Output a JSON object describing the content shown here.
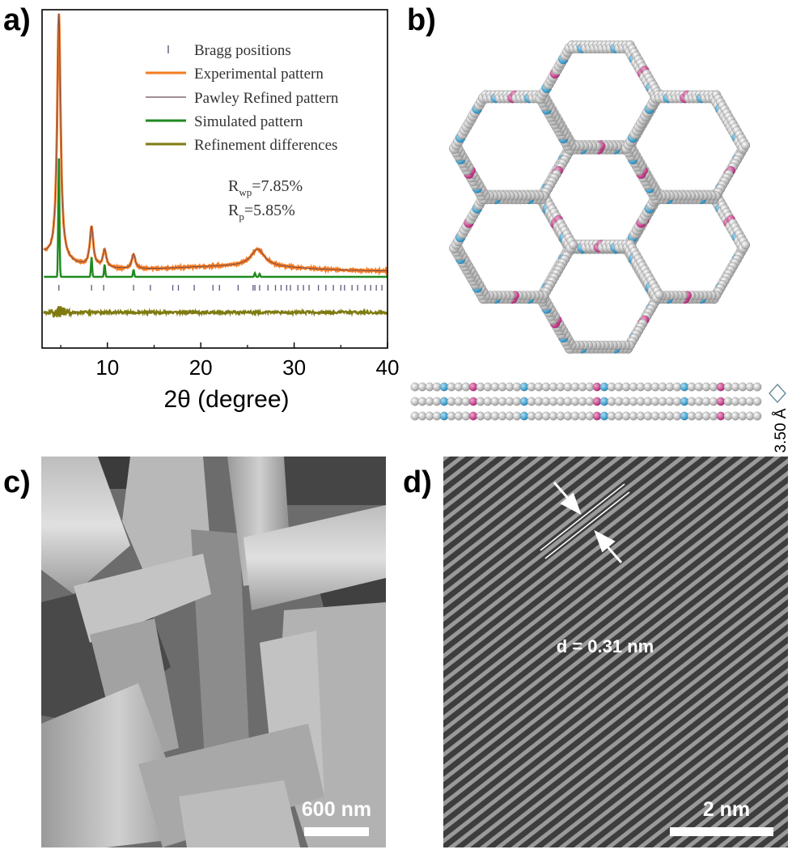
{
  "panels": {
    "a": "a)",
    "b": "b)",
    "c": "c)",
    "d": "d)"
  },
  "colors": {
    "experimental": "#f47b20",
    "pawley": "#6b4a5a",
    "simulated": "#1f8a1f",
    "difference": "#7f7a10",
    "bragg": "#5a5a7a",
    "carbon": "#c9c9c9",
    "nitrogen": "#3ba6d6",
    "boron": "#d6338f"
  },
  "chart_data": {
    "type": "line",
    "xlabel": "2θ (degree)",
    "ylabel": "",
    "xlim": [
      3,
      40
    ],
    "xticks": [
      10,
      20,
      30,
      40
    ],
    "grid": false,
    "legend_position": "top-right",
    "legend": {
      "bragg": "Bragg positions",
      "experimental": "Experimental pattern",
      "pawley": "Pawley Refined pattern",
      "simulated": "Simulated pattern",
      "difference": "Refinement differences"
    },
    "annotations": {
      "rwp_main": "R",
      "rwp_sub": "wp",
      "rwp_val": "=7.85%",
      "rp_main": "R",
      "rp_sub": "p",
      "rp_val": "=5.85%"
    },
    "peaks_experimental": [
      {
        "x": 4.8,
        "y": 1.0
      },
      {
        "x": 8.3,
        "y": 0.16
      },
      {
        "x": 9.7,
        "y": 0.07
      },
      {
        "x": 12.8,
        "y": 0.06
      },
      {
        "x": 26.1,
        "y": 0.07
      }
    ],
    "peaks_simulated": [
      {
        "x": 4.8,
        "y": 0.48
      },
      {
        "x": 8.3,
        "y": 0.08
      },
      {
        "x": 9.7,
        "y": 0.05
      },
      {
        "x": 12.8,
        "y": 0.03
      },
      {
        "x": 25.8,
        "y": 0.015
      },
      {
        "x": 26.3,
        "y": 0.012
      }
    ],
    "bragg_positions": [
      4.8,
      8.3,
      9.6,
      12.8,
      14.6,
      17.0,
      17.6,
      19.3,
      21.3,
      22.0,
      24.0,
      25.6,
      25.8,
      26.3,
      27.2,
      28.0,
      28.6,
      29.2,
      29.6,
      30.4,
      31.0,
      31.6,
      32.6,
      33.4,
      34.2,
      35.0,
      35.4,
      36.2,
      36.8,
      37.6,
      38.2,
      38.8,
      39.4
    ]
  },
  "structure": {
    "interlayer": "3.50 Å"
  },
  "sem": {
    "scale": "600 nm"
  },
  "tem": {
    "spacing": "d = 0.31 nm",
    "scale": "2 nm"
  }
}
